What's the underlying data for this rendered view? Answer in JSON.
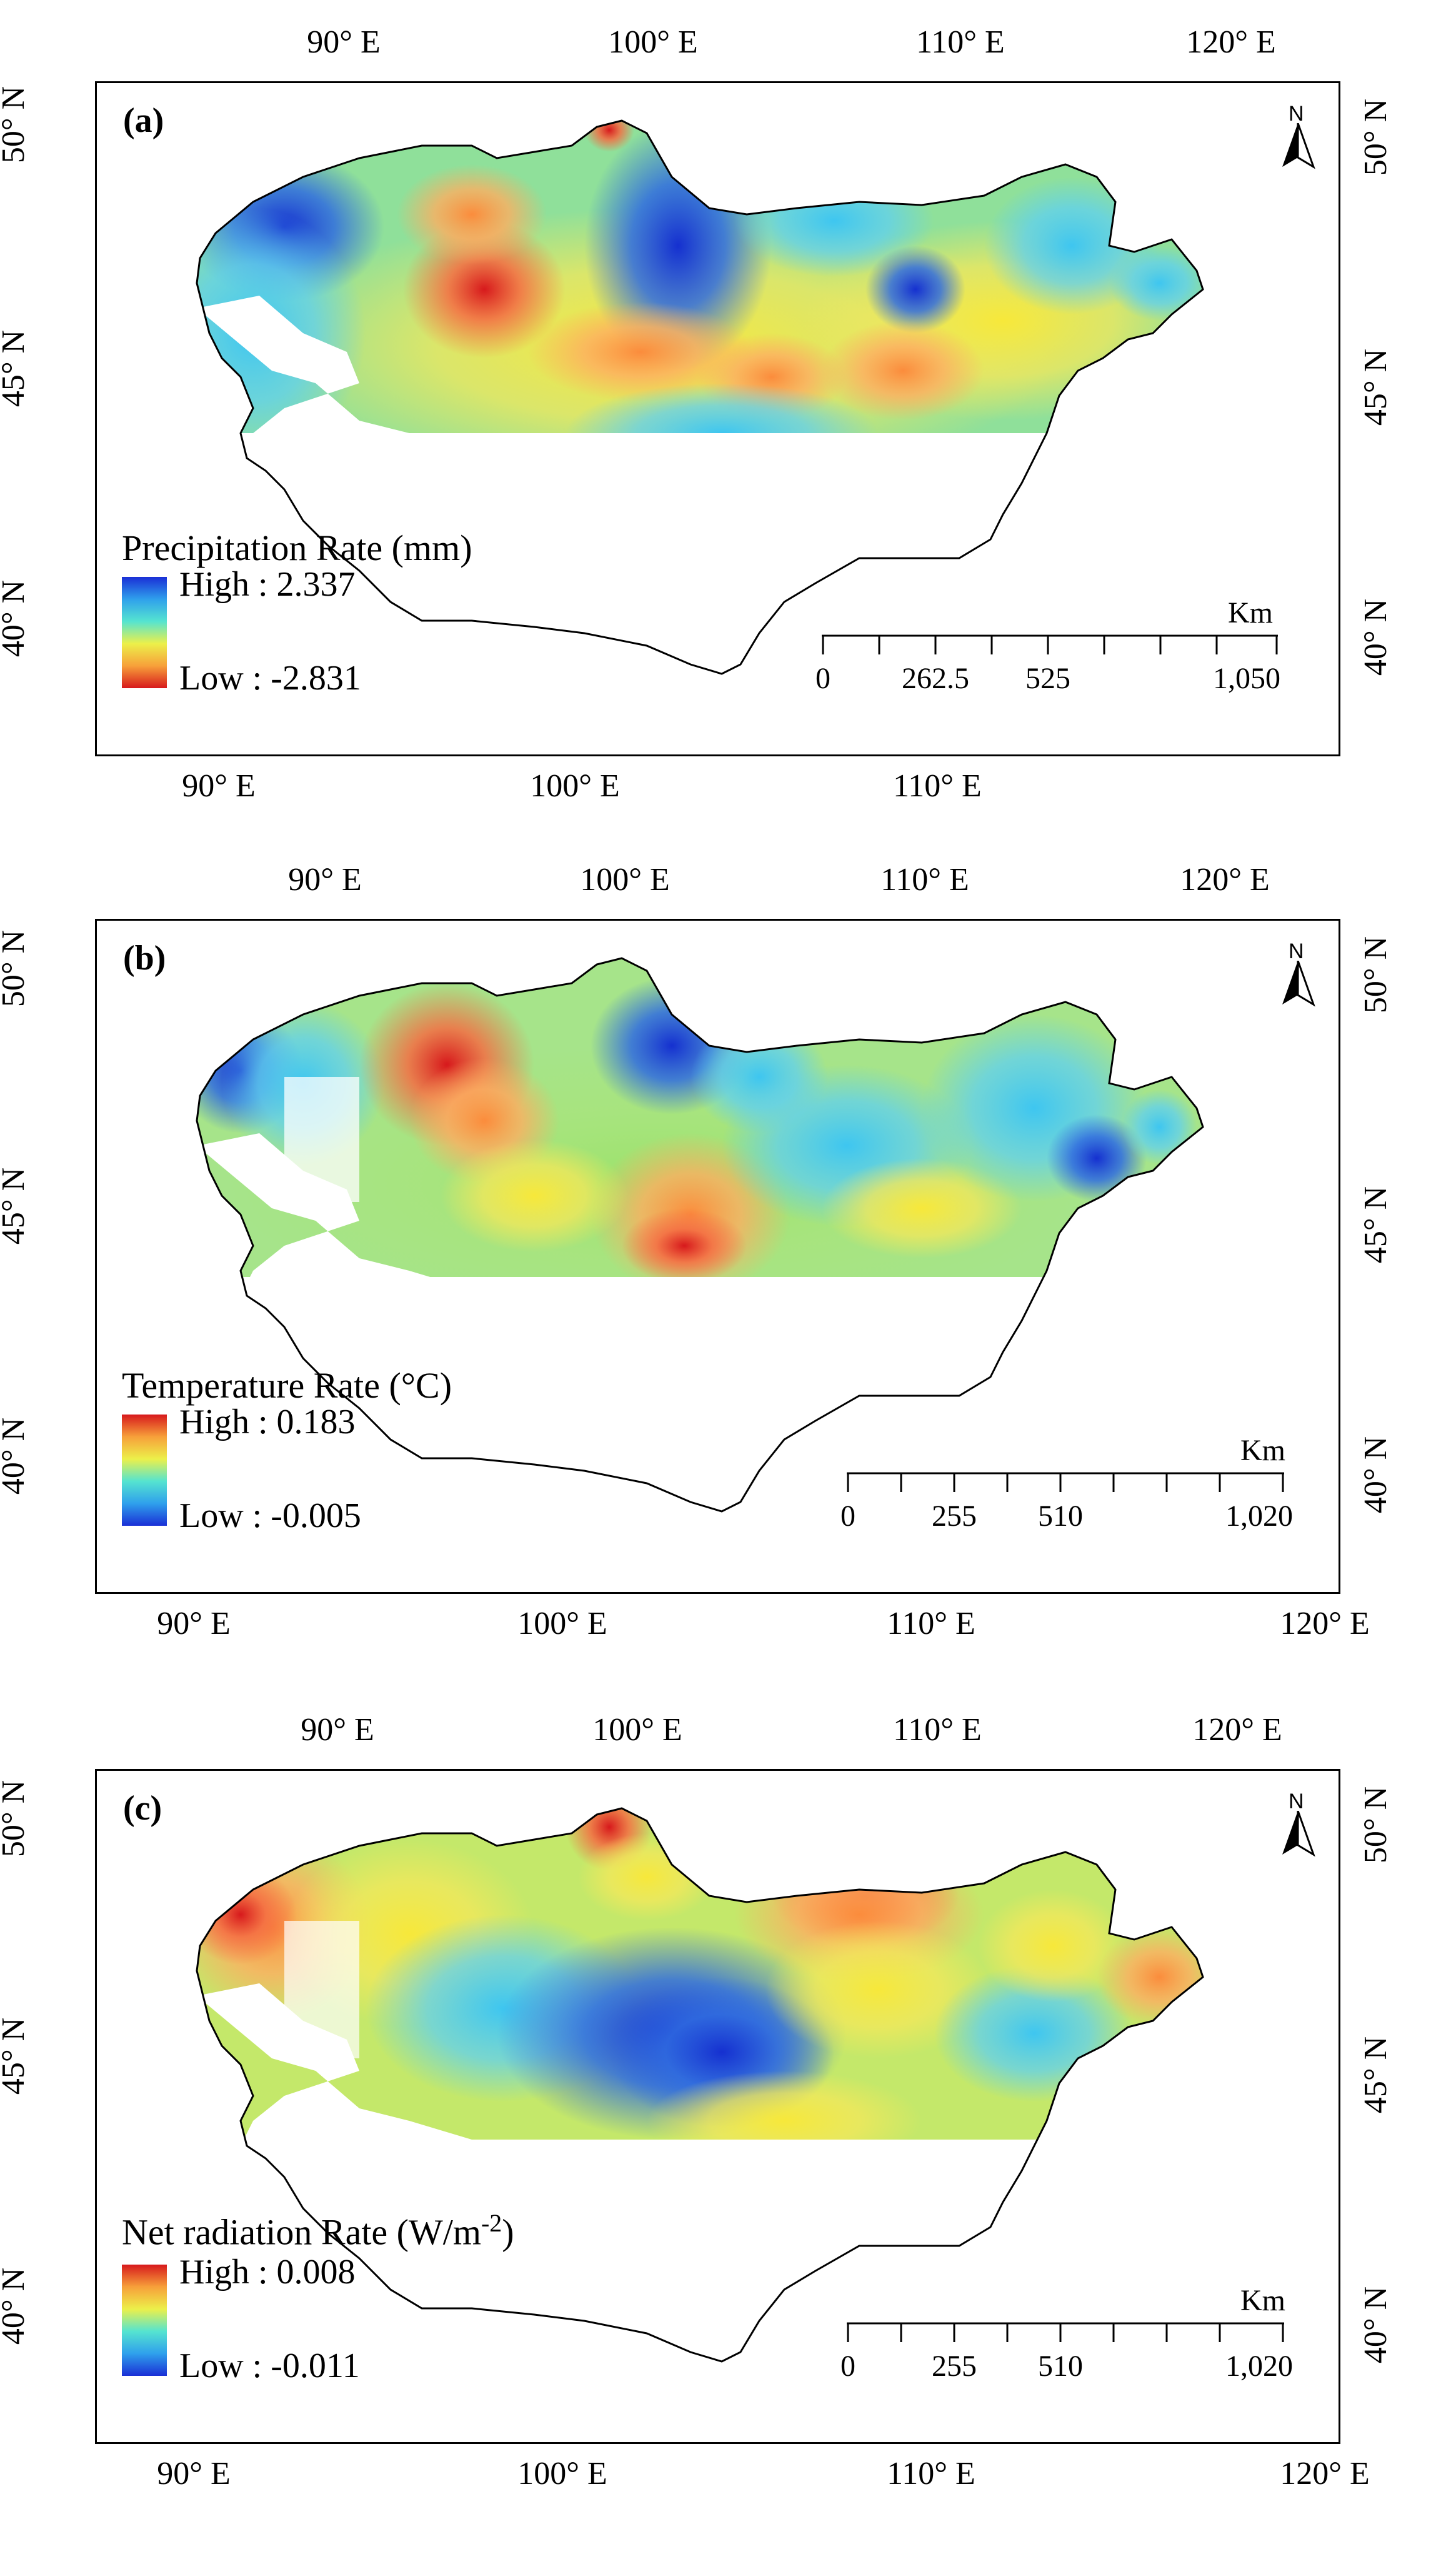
{
  "panels": [
    {
      "label": "(a)",
      "legend_title": "Precipitation Rate (mm)",
      "legend_high": "High : 2.337",
      "legend_low": "Low : -2.831",
      "high_color": "#1a2fd6",
      "low_color": "#d7191c",
      "scale_unit": "Km",
      "scale_labels": [
        "0",
        "262.5",
        "525",
        "1,050"
      ],
      "top_ticks": [
        "90° E",
        "100° E",
        "110° E",
        "120° E"
      ],
      "bottom_ticks": [
        "90° E",
        "100° E",
        "110° E"
      ],
      "left_ticks": [
        "50° N",
        "45° N",
        "40° N"
      ],
      "right_ticks": [
        "50° N",
        "45° N",
        "40° N"
      ],
      "north_label": "N"
    },
    {
      "label": "(b)",
      "legend_title": "Temperature Rate (°C)",
      "legend_high": "High : 0.183",
      "legend_low": "Low : -0.005",
      "high_color": "#d7191c",
      "low_color": "#1a2fd6",
      "scale_unit": "Km",
      "scale_labels": [
        "0",
        "255",
        "510",
        "1,020"
      ],
      "top_ticks": [
        "90° E",
        "100° E",
        "110° E",
        "120° E"
      ],
      "bottom_ticks": [
        "90° E",
        "100° E",
        "110° E",
        "120° E"
      ],
      "left_ticks": [
        "50° N",
        "45° N",
        "40° N"
      ],
      "right_ticks": [
        "50° N",
        "45° N",
        "40° N"
      ],
      "north_label": "N"
    },
    {
      "label": "(c)",
      "legend_title_main": "Net radiation Rate (W/m",
      "legend_title_sup": "-2",
      "legend_title_end": ")",
      "legend_high": "High : 0.008",
      "legend_low": "Low : -0.011",
      "high_color": "#d7191c",
      "low_color": "#1a2fd6",
      "scale_unit": "Km",
      "scale_labels": [
        "0",
        "255",
        "510",
        "1,020"
      ],
      "top_ticks": [
        "90° E",
        "100° E",
        "110° E",
        "120° E"
      ],
      "bottom_ticks": [
        "90° E",
        "100° E",
        "110° E",
        "120° E"
      ],
      "left_ticks": [
        "50° N",
        "45° N",
        "40° N"
      ],
      "right_ticks": [
        "50° N",
        "45° N",
        "40° N"
      ],
      "north_label": "N"
    }
  ]
}
